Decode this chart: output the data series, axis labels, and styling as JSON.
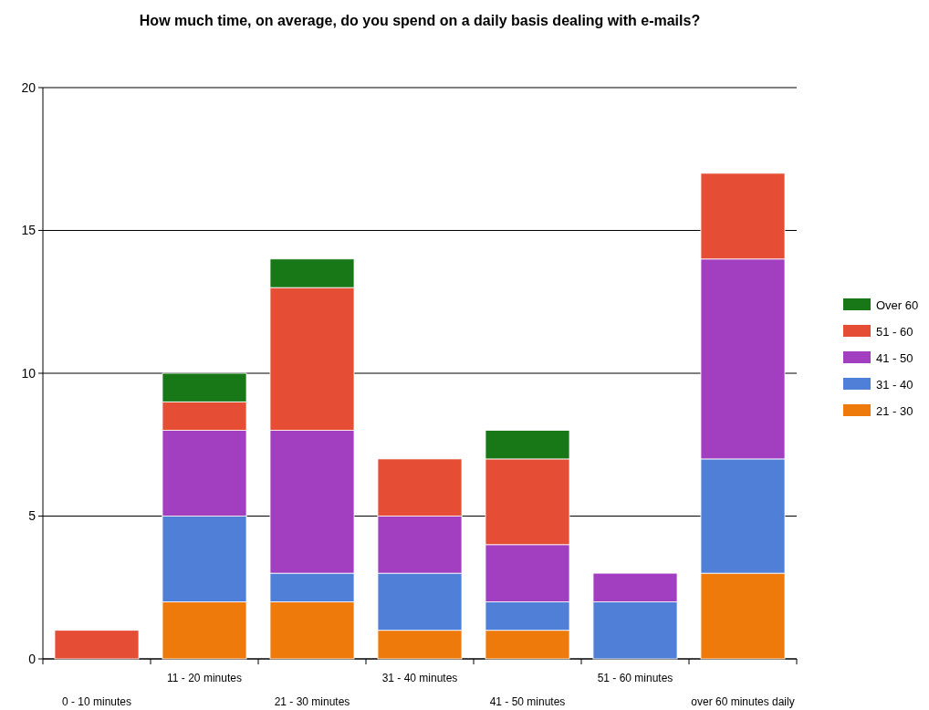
{
  "chart_data": {
    "type": "bar",
    "title": "How much time, on average, do you spend on a daily basis dealing with e-mails?",
    "categories": [
      "0 - 10 minutes",
      "11 - 20 minutes",
      "21 - 30 minutes",
      "31 - 40 minutes",
      "41 - 50 minutes",
      "51 - 60 minutes",
      "over 60 minutes daily"
    ],
    "stacked": true,
    "ylim": [
      0,
      20
    ],
    "yticks": [
      0,
      5,
      10,
      15,
      20
    ],
    "grid": "y",
    "legend": "right",
    "series": [
      {
        "name": "21 - 30",
        "color": "#ee7a0c",
        "values": [
          0,
          2,
          2,
          1,
          1,
          0,
          3
        ]
      },
      {
        "name": "31 - 40",
        "color": "#4f7fd6",
        "values": [
          0,
          3,
          1,
          2,
          1,
          2,
          4
        ]
      },
      {
        "name": "41 - 50",
        "color": "#a23fc0",
        "values": [
          0,
          3,
          5,
          2,
          2,
          1,
          7
        ]
      },
      {
        "name": "51 - 60",
        "color": "#e54d35",
        "values": [
          1,
          1,
          5,
          2,
          3,
          0,
          3
        ]
      },
      {
        "name": "Over 60",
        "color": "#187818",
        "values": [
          0,
          1,
          1,
          0,
          1,
          0,
          0
        ]
      }
    ]
  }
}
